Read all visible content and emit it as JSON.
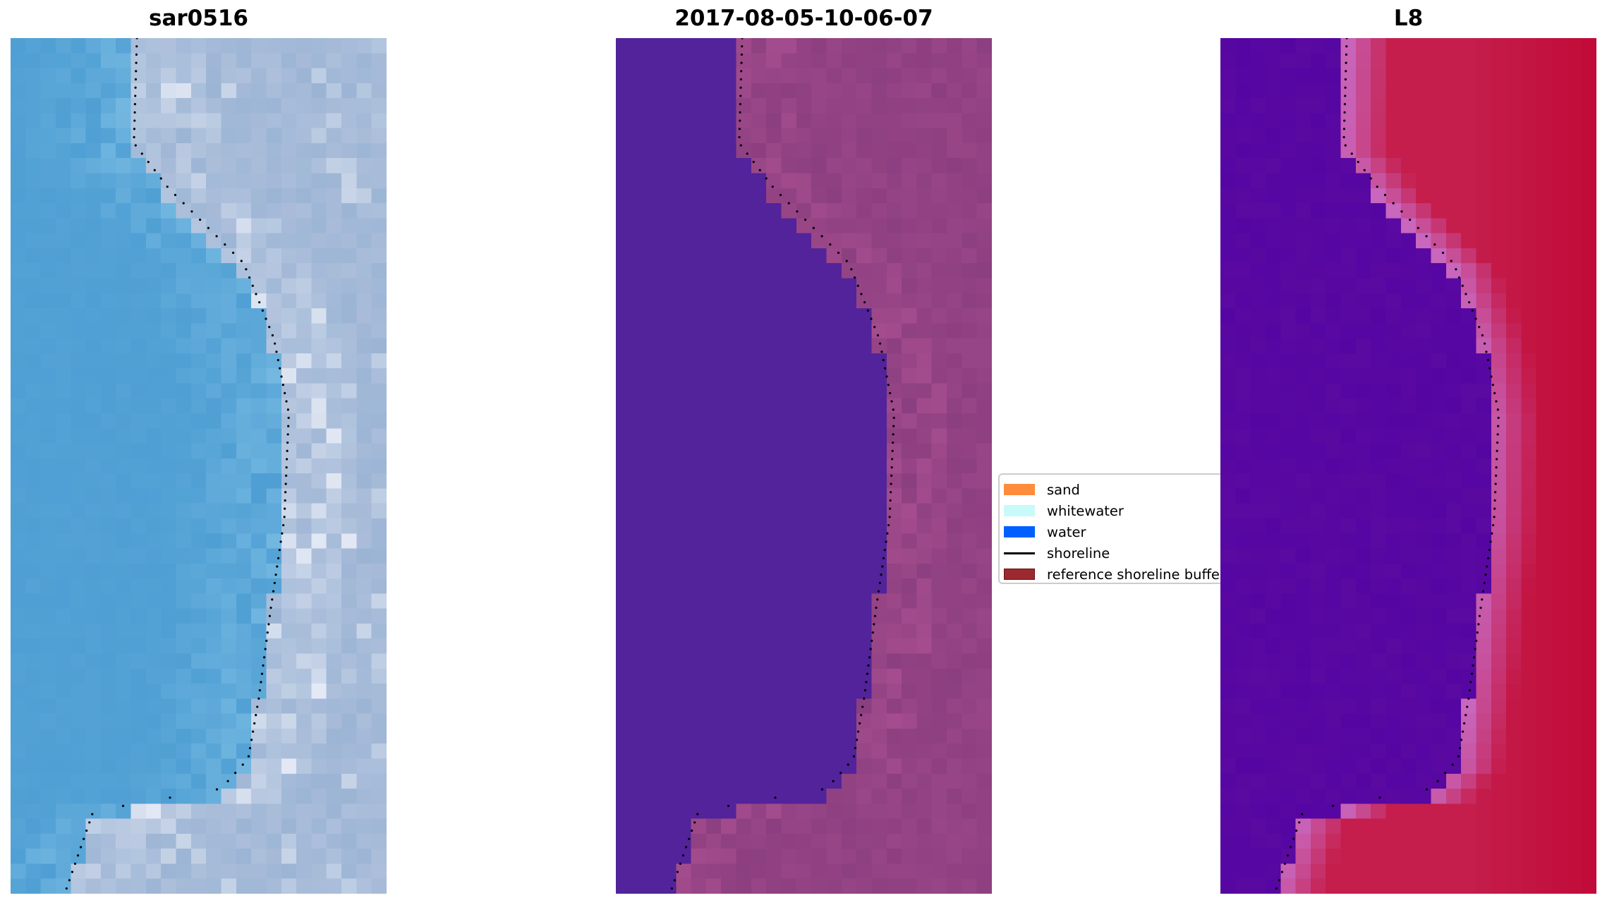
{
  "chart_data": [
    {
      "type": "heatmap",
      "title": "sar0516",
      "image": "satellite RGB",
      "palette": {
        "water": "#4f9fd4",
        "land": "#a9bcd9",
        "bright": "#e8ecf6"
      }
    },
    {
      "type": "heatmap",
      "title": "2017-08-05-10-06-07",
      "image": "classified overlay",
      "palette": {
        "water": "#52239a",
        "land": "#8c3f80"
      }
    },
    {
      "type": "heatmap",
      "title": "L8",
      "image": "water index",
      "palette": {
        "water": "#5a0aa0",
        "land": "#c51e4c"
      }
    }
  ],
  "legend": {
    "placement": "center",
    "items": [
      {
        "label": "sand",
        "color": "#ff8c3c",
        "kind": "patch"
      },
      {
        "label": "whitewater",
        "color": "#c8fafa",
        "kind": "patch"
      },
      {
        "label": "water",
        "color": "#0060ff",
        "kind": "patch"
      },
      {
        "label": "shoreline",
        "color": "#000000",
        "kind": "line"
      },
      {
        "label": "reference shoreline buffer",
        "color": "#9b2a30",
        "kind": "patch"
      }
    ]
  },
  "shoreline_style": "dotted black"
}
